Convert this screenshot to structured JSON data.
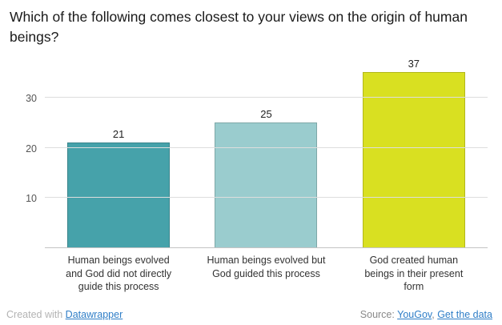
{
  "header": {
    "title": "Which of the following comes closest to your views on the origin of human beings?"
  },
  "chart_data": {
    "type": "bar",
    "title": "Which of the following comes closest to your views on the origin of human beings?",
    "categories": [
      "Human beings evolved and God did not directly guide this process",
      "Human beings evolved but God guided this process",
      "God created human beings in their present form"
    ],
    "values": [
      21,
      25,
      37
    ],
    "colors": [
      "#46a2aa",
      "#9accce",
      "#d9e021"
    ],
    "yticks": [
      10,
      20,
      30
    ],
    "ylim": [
      0,
      38
    ],
    "xlabel": "",
    "ylabel": "",
    "grid": "horizontal",
    "legend": "none"
  },
  "footer": {
    "created_with": "Created with",
    "datawrapper_link": "Datawrapper",
    "source_label": "Source:",
    "source_link": "YouGov",
    "sep": ",",
    "get_data_link": "Get the data"
  }
}
